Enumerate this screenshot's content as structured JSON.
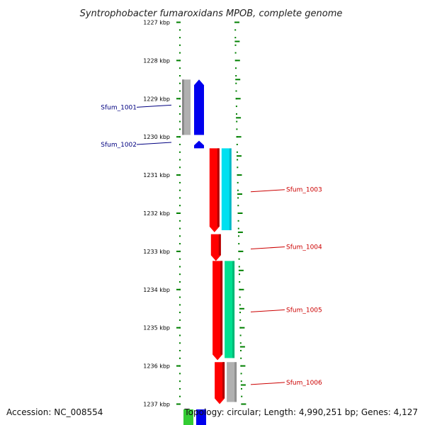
{
  "title": "Syntrophobacter fumaroxidans MPOB, complete genome",
  "accession": "Accession: NC_008554",
  "summary": "Topology: circular; Length: 4,990,251 bp; Genes: 4,127",
  "ticks": [
    {
      "kbp": 1227,
      "label": "1227 kbp"
    },
    {
      "kbp": 1228,
      "label": "1228 kbp"
    },
    {
      "kbp": 1229,
      "label": "1229 kbp"
    },
    {
      "kbp": 1230,
      "label": "1230 kbp"
    },
    {
      "kbp": 1231,
      "label": "1231 kbp"
    },
    {
      "kbp": 1232,
      "label": "1232 kbp"
    },
    {
      "kbp": 1233,
      "label": "1233 kbp"
    },
    {
      "kbp": 1234,
      "label": "1234 kbp"
    },
    {
      "kbp": 1235,
      "label": "1235 kbp"
    },
    {
      "kbp": 1236,
      "label": "1236 kbp"
    },
    {
      "kbp": 1237,
      "label": "1237 kbp"
    }
  ],
  "genes": [
    {
      "label": "Sfum_1001",
      "strand": "minus",
      "start_kbp": 1228.5,
      "end_kbp": 1229.95,
      "color": "#0000ee",
      "cog_color": "#b0b0b0"
    },
    {
      "label": "Sfum_1002",
      "strand": "minus",
      "start_kbp": 1230.1,
      "end_kbp": 1230.3,
      "color": "#0000ee",
      "cog_color": null
    },
    {
      "label": "Sfum_1003",
      "strand": "plus",
      "start_kbp": 1230.3,
      "end_kbp": 1232.5,
      "color": "#ff0000",
      "cog_color": "#00e0f0"
    },
    {
      "label": "Sfum_1004",
      "strand": "plus",
      "start_kbp": 1232.55,
      "end_kbp": 1233.25,
      "color": "#ff0000",
      "cog_color": null
    },
    {
      "label": "Sfum_1005",
      "strand": "plus",
      "start_kbp": 1233.25,
      "end_kbp": 1235.85,
      "color": "#ff0000",
      "cog_color": "#00e090"
    },
    {
      "label": "Sfum_1006",
      "strand": "plus",
      "start_kbp": 1235.9,
      "end_kbp": 1237.0,
      "color": "#ff0000",
      "cog_color": "#b0b0b0"
    }
  ],
  "colors": {
    "minus_label": "#000080",
    "plus_label": "#cc0000",
    "tick": "#008000",
    "backbone": "#777777"
  }
}
